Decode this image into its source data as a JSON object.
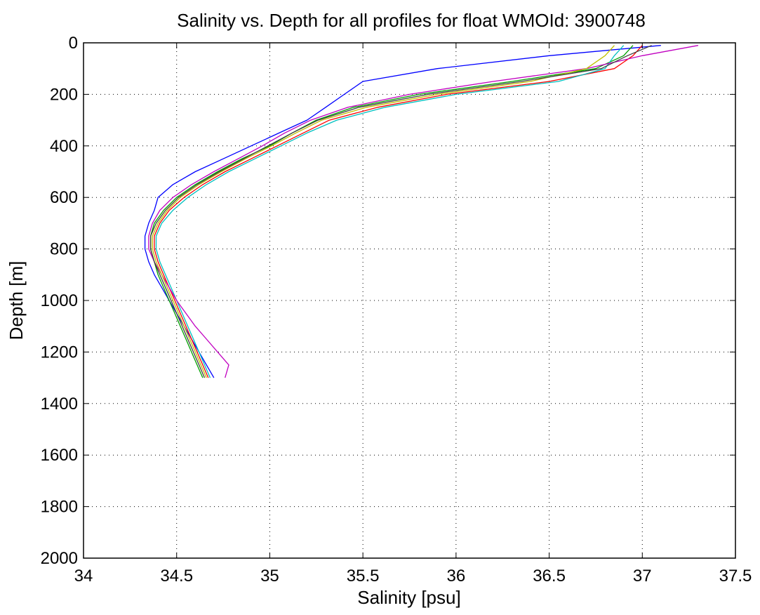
{
  "chart_data": {
    "type": "line",
    "title": "Salinity vs. Depth for all profiles for float WMOId: 3900748",
    "xlabel": "Salinity [psu]",
    "ylabel": "Depth [m]",
    "xlim": [
      34,
      37.5
    ],
    "ylim": [
      0,
      2000
    ],
    "y_reversed": true,
    "grid": true,
    "legend": "none",
    "x_ticks": [
      "34",
      "34.5",
      "35",
      "35.5",
      "36",
      "36.5",
      "37",
      "37.5"
    ],
    "y_ticks": [
      "0",
      "200",
      "400",
      "600",
      "800",
      "1000",
      "1200",
      "1400",
      "1600",
      "1800",
      "2000"
    ],
    "depth": [
      10,
      50,
      100,
      150,
      200,
      250,
      300,
      350,
      400,
      450,
      500,
      550,
      600,
      650,
      700,
      750,
      800,
      850,
      900,
      950,
      1000,
      1050,
      1100,
      1150,
      1200,
      1250,
      1300
    ],
    "series": [
      {
        "color": "#0000ff",
        "values": [
          37.1,
          36.5,
          35.9,
          35.5,
          35.4,
          35.3,
          35.2,
          35.05,
          34.9,
          34.75,
          34.6,
          34.48,
          34.4,
          34.38,
          34.35,
          34.33,
          34.33,
          34.35,
          34.38,
          34.42,
          34.46,
          34.5,
          34.54,
          34.58,
          34.62,
          34.66,
          34.7
        ]
      },
      {
        "color": "#00a000",
        "values": [
          36.95,
          36.9,
          36.75,
          36.3,
          35.8,
          35.45,
          35.25,
          35.12,
          35.0,
          34.85,
          34.72,
          34.6,
          34.5,
          34.43,
          34.38,
          34.36,
          34.36,
          34.38,
          34.4,
          34.43,
          34.46,
          34.49,
          34.52,
          34.55,
          34.58,
          34.61,
          34.64
        ]
      },
      {
        "color": "#ff0000",
        "values": [
          37.0,
          36.95,
          36.85,
          36.5,
          35.95,
          35.58,
          35.32,
          35.18,
          35.04,
          34.9,
          34.76,
          34.64,
          34.54,
          34.46,
          34.41,
          34.38,
          34.38,
          34.4,
          34.43,
          34.46,
          34.49,
          34.52,
          34.55,
          34.58,
          34.61,
          34.64,
          34.67
        ]
      },
      {
        "color": "#00c0c0",
        "values": [
          36.9,
          36.85,
          36.8,
          36.55,
          36.0,
          35.62,
          35.36,
          35.2,
          35.06,
          34.92,
          34.78,
          34.66,
          34.56,
          34.48,
          34.42,
          34.39,
          34.39,
          34.41,
          34.44,
          34.47,
          34.5,
          34.53,
          34.56,
          34.59,
          34.62,
          34.65,
          34.68
        ]
      },
      {
        "color": "#c000c0",
        "values": [
          37.3,
          37.0,
          36.7,
          36.2,
          35.75,
          35.42,
          35.22,
          35.08,
          34.96,
          34.83,
          34.7,
          34.58,
          34.48,
          34.41,
          34.37,
          34.35,
          34.35,
          34.38,
          34.42,
          34.46,
          34.5,
          34.55,
          34.6,
          34.66,
          34.72,
          34.78,
          34.76
        ]
      },
      {
        "color": "#c0c000",
        "values": [
          36.85,
          36.8,
          36.7,
          36.4,
          35.9,
          35.52,
          35.28,
          35.14,
          35.01,
          34.87,
          34.74,
          34.62,
          34.52,
          34.45,
          34.4,
          34.37,
          34.37,
          34.39,
          34.42,
          34.45,
          34.48,
          34.51,
          34.54,
          34.57,
          34.6,
          34.63,
          34.66
        ]
      },
      {
        "color": "#404040",
        "values": [
          37.05,
          36.92,
          36.78,
          36.35,
          35.85,
          35.48,
          35.26,
          35.12,
          34.99,
          34.86,
          34.73,
          34.61,
          34.51,
          34.44,
          34.39,
          34.36,
          34.36,
          34.38,
          34.41,
          34.44,
          34.47,
          34.5,
          34.53,
          34.56,
          34.59,
          34.62,
          34.65
        ]
      }
    ]
  }
}
